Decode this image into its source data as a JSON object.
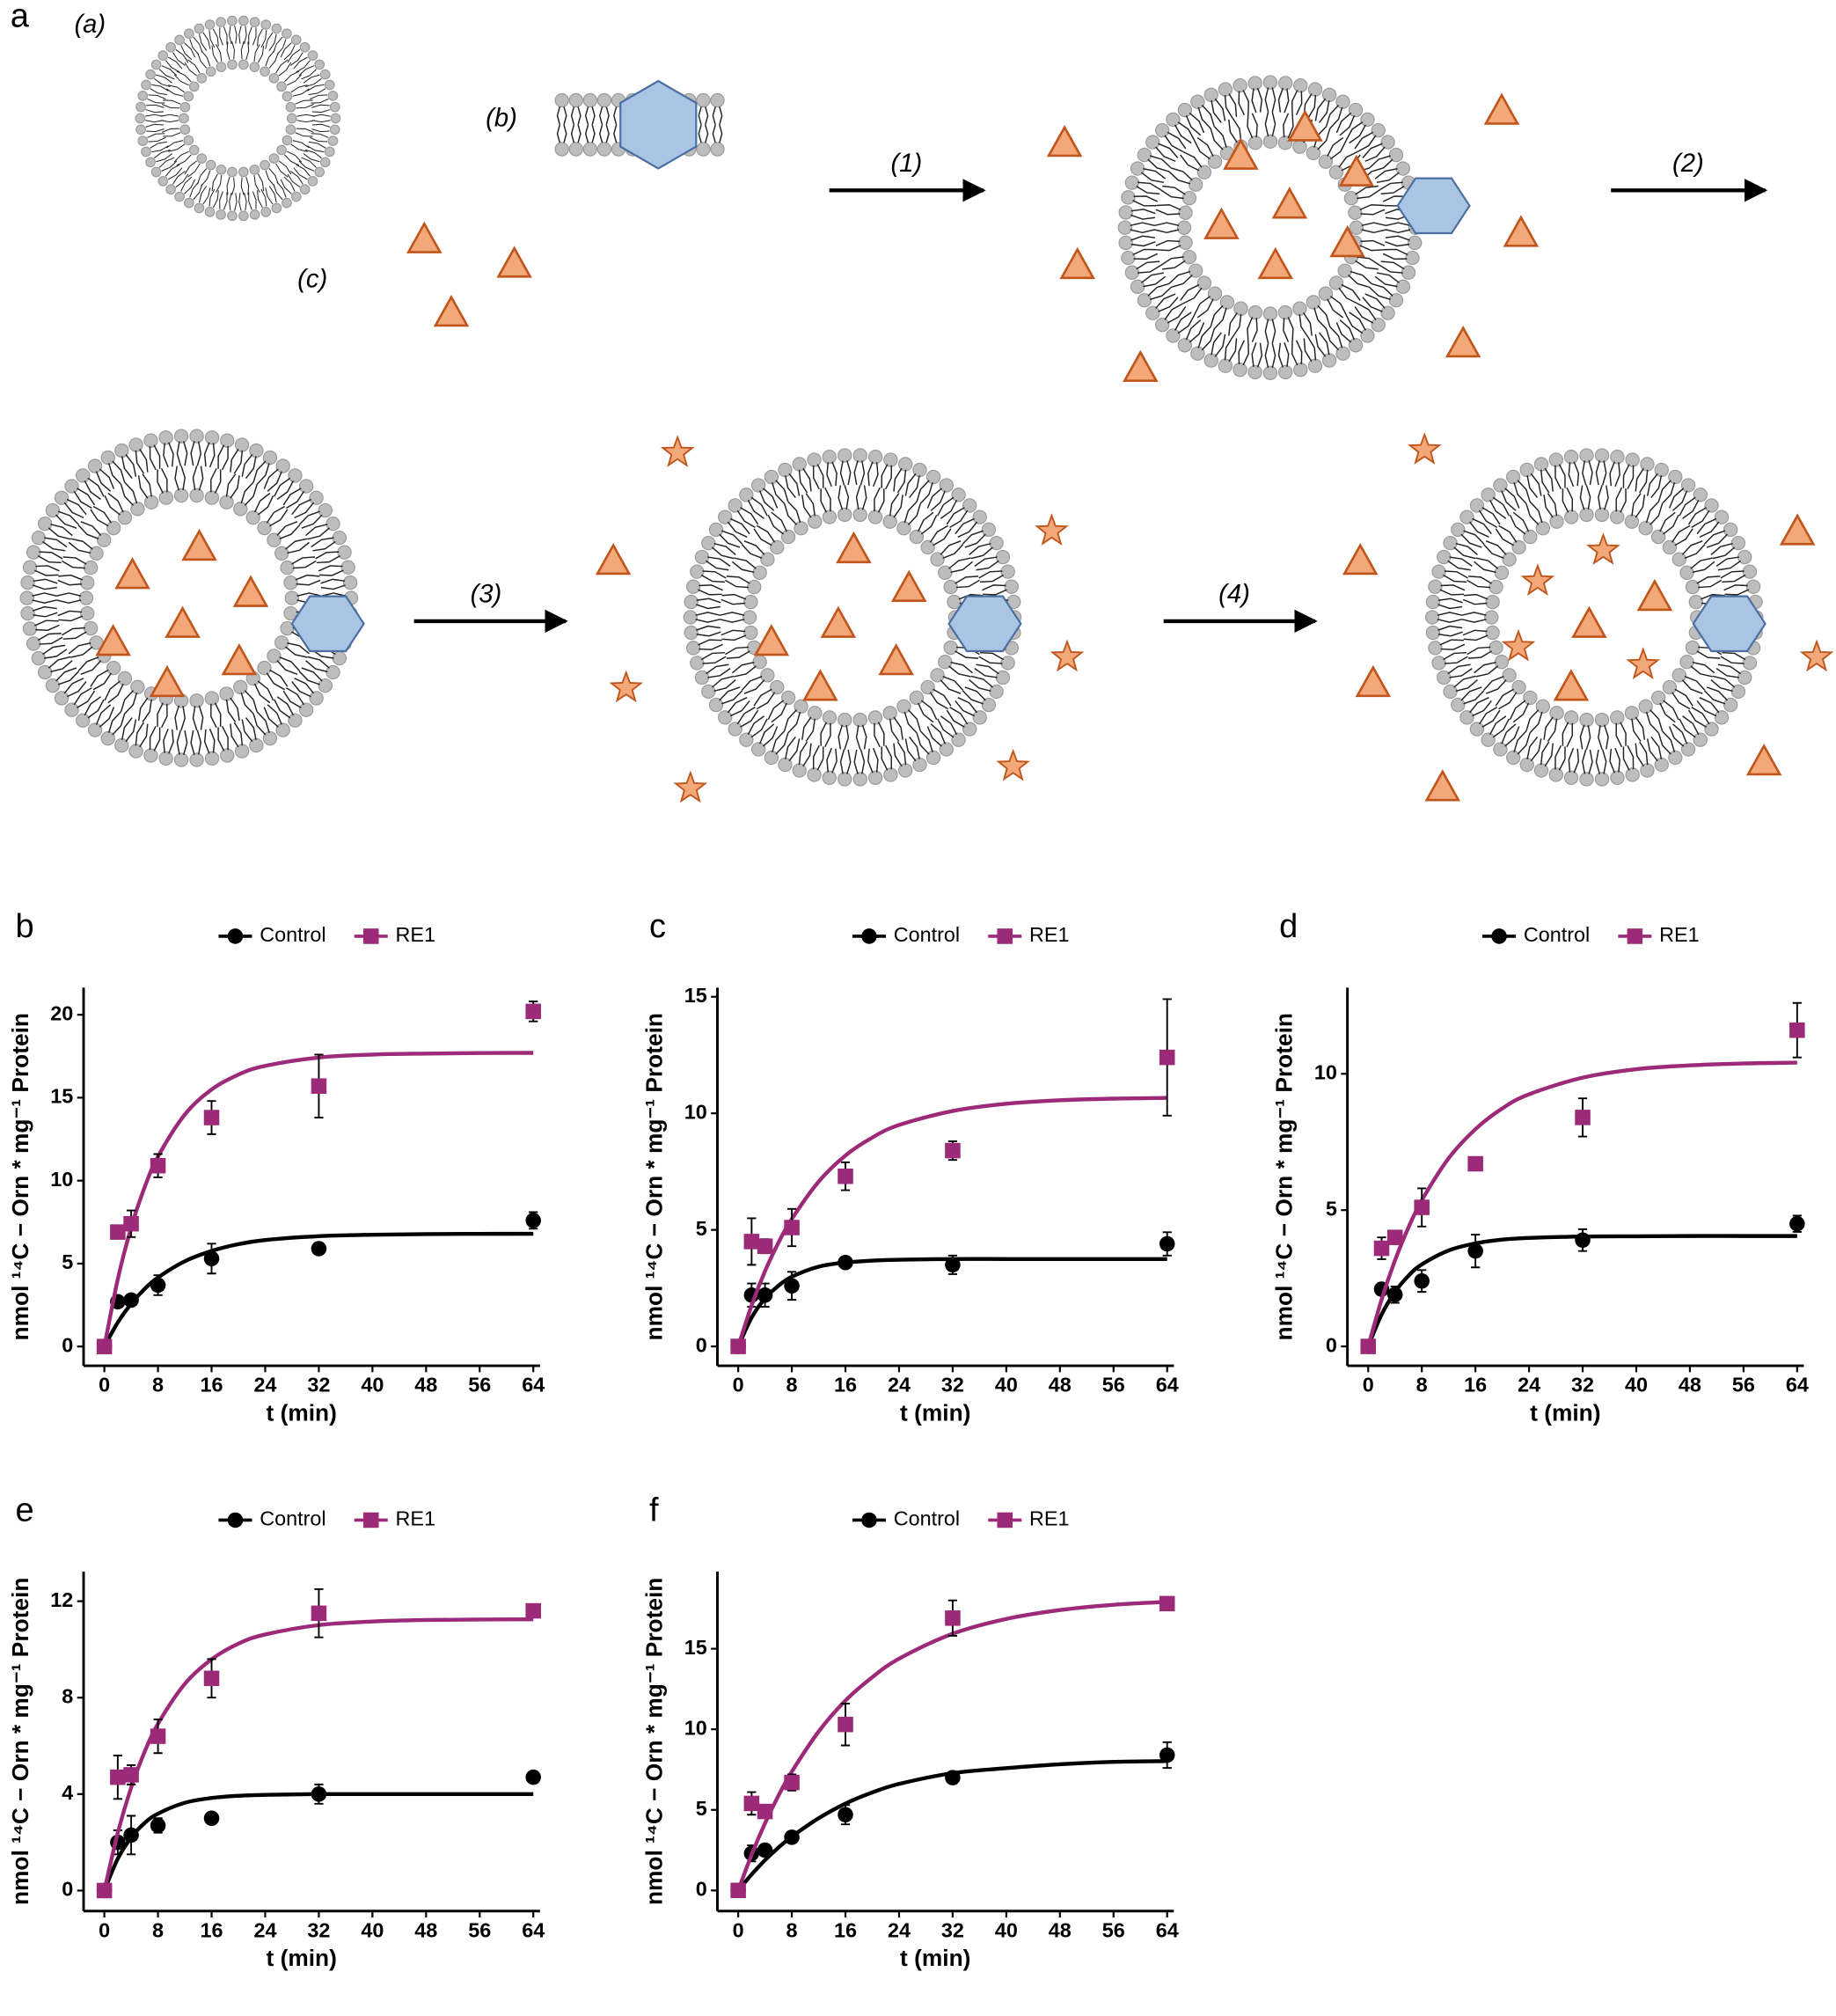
{
  "diagram": {
    "panel_label": "a",
    "labels": [
      "(a)",
      "(b)",
      "(c)"
    ],
    "steps": [
      "(1)",
      "(2)",
      "(3)",
      "(4)"
    ]
  },
  "chart_data": [
    {
      "type": "scatter",
      "panel_label": "b",
      "x_label": "t (min)",
      "y_label": "nmol ¹⁴C − Orn * mg⁻¹ Protein",
      "x": [
        0,
        2,
        4,
        8,
        16,
        32,
        64
      ],
      "fit_x": [
        0,
        2,
        4,
        6,
        8,
        12,
        16,
        20,
        24,
        32,
        40,
        48,
        56,
        64
      ],
      "xlim": [
        -3.1,
        65
      ],
      "ylim": [
        -1.16,
        21.63
      ],
      "xticks": [
        0,
        8,
        16,
        24,
        32,
        40,
        48,
        56,
        64
      ],
      "yticks": [
        0,
        5,
        10,
        15,
        20
      ],
      "series": [
        {
          "name": "Control",
          "color": "#000000",
          "marker": "circle",
          "values": [
            0,
            2.7,
            2.8,
            3.7,
            5.3,
            5.9,
            7.6
          ],
          "errors": [
            0,
            0.1,
            0.1,
            0.6,
            0.9,
            0.2,
            0.5
          ],
          "fit_values": [
            0,
            1.45,
            2.58,
            3.47,
            4.16,
            5.14,
            5.76,
            6.17,
            6.42,
            6.65,
            6.74,
            6.78,
            6.79,
            6.8
          ]
        },
        {
          "name": "RE1",
          "color": "#9c2a78",
          "marker": "square",
          "values": [
            0,
            6.9,
            7.4,
            10.9,
            13.8,
            15.7,
            20.2
          ],
          "errors": [
            0,
            0.2,
            0.8,
            0.7,
            1.0,
            1.9,
            0.6
          ],
          "fit_values": [
            0,
            4.05,
            7.17,
            9.59,
            11.45,
            13.98,
            15.49,
            16.39,
            16.92,
            17.42,
            17.6,
            17.66,
            17.69,
            17.7
          ]
        }
      ]
    },
    {
      "type": "scatter",
      "panel_label": "c",
      "x_label": "t (min)",
      "y_label": "nmol ¹⁴C − Orn * mg⁻¹ Protein",
      "x": [
        0,
        2,
        4,
        8,
        16,
        32,
        64
      ],
      "fit_x": [
        0,
        2,
        4,
        6,
        8,
        12,
        16,
        20,
        24,
        32,
        40,
        48,
        56,
        64
      ],
      "xlim": [
        -3.1,
        65
      ],
      "ylim": [
        -0.83,
        15.39
      ],
      "xticks": [
        0,
        8,
        16,
        24,
        32,
        40,
        48,
        56,
        64
      ],
      "yticks": [
        0,
        5,
        10,
        15
      ],
      "series": [
        {
          "name": "Control",
          "color": "#000000",
          "marker": "circle",
          "values": [
            0,
            2.2,
            2.2,
            2.6,
            3.6,
            3.5,
            4.4
          ],
          "errors": [
            0,
            0.5,
            0.5,
            0.6,
            0.1,
            0.4,
            0.5
          ],
          "fit_values": [
            0,
            1.24,
            2.06,
            2.6,
            2.99,
            3.42,
            3.6,
            3.68,
            3.72,
            3.75,
            3.75,
            3.75,
            3.75,
            3.75
          ]
        },
        {
          "name": "RE1",
          "color": "#9c2a78",
          "marker": "square",
          "values": [
            0,
            4.5,
            4.3,
            5.1,
            7.3,
            8.4,
            12.4
          ],
          "errors": [
            0,
            1.0,
            0.3,
            0.8,
            0.6,
            0.4,
            2.5
          ],
          "fit_values": [
            0,
            1.76,
            3.23,
            4.45,
            5.47,
            7.07,
            8.19,
            8.96,
            9.5,
            10.1,
            10.41,
            10.56,
            10.63,
            10.66
          ]
        }
      ]
    },
    {
      "type": "scatter",
      "panel_label": "d",
      "x_label": "t (min)",
      "y_label": "nmol ¹⁴C − Orn * mg⁻¹ Protein",
      "x": [
        0,
        2,
        4,
        8,
        16,
        32,
        64
      ],
      "fit_x": [
        0,
        2,
        4,
        6,
        8,
        12,
        16,
        20,
        24,
        32,
        40,
        48,
        56,
        64
      ],
      "xlim": [
        -3.1,
        65
      ],
      "ylim": [
        -0.71,
        13.16
      ],
      "xticks": [
        0,
        8,
        16,
        24,
        32,
        40,
        48,
        56,
        64
      ],
      "yticks": [
        0,
        5,
        10
      ],
      "series": [
        {
          "name": "Control",
          "color": "#000000",
          "marker": "circle",
          "values": [
            0,
            2.1,
            1.9,
            2.4,
            3.5,
            3.9,
            4.5
          ],
          "errors": [
            0,
            0.1,
            0.3,
            0.4,
            0.6,
            0.4,
            0.3
          ],
          "fit_values": [
            0,
            1.17,
            2.0,
            2.59,
            3.01,
            3.52,
            3.78,
            3.92,
            3.98,
            4.03,
            4.04,
            4.05,
            4.05,
            4.05
          ]
        },
        {
          "name": "RE1",
          "color": "#9c2a78",
          "marker": "square",
          "values": [
            0,
            3.6,
            4.0,
            5.1,
            6.7,
            8.4,
            11.6
          ],
          "errors": [
            0,
            0.4,
            0.2,
            0.7,
            0.2,
            0.7,
            1.0
          ],
          "fit_values": [
            0,
            1.72,
            3.16,
            4.36,
            5.36,
            6.9,
            7.97,
            8.73,
            9.25,
            9.86,
            10.17,
            10.31,
            10.38,
            10.41
          ]
        }
      ]
    },
    {
      "type": "scatter",
      "panel_label": "e",
      "x_label": "t (min)",
      "y_label": "nmol ¹⁴C − Orn * mg⁻¹ Protein",
      "x": [
        0,
        2,
        4,
        8,
        16,
        32,
        64
      ],
      "fit_x": [
        0,
        2,
        4,
        6,
        8,
        12,
        16,
        20,
        24,
        32,
        40,
        48,
        56,
        64
      ],
      "xlim": [
        -3.1,
        65
      ],
      "ylim": [
        -0.85,
        13.23
      ],
      "xticks": [
        0,
        8,
        16,
        24,
        32,
        40,
        48,
        56,
        64
      ],
      "yticks": [
        0,
        4,
        8,
        12
      ],
      "series": [
        {
          "name": "Control",
          "color": "#000000",
          "marker": "circle",
          "values": [
            0,
            2.0,
            2.3,
            2.7,
            3.0,
            4.0,
            4.7
          ],
          "errors": [
            0,
            0.5,
            0.8,
            0.3,
            0.2,
            0.4,
            0.2
          ],
          "fit_values": [
            0,
            1.32,
            2.2,
            2.8,
            3.19,
            3.64,
            3.84,
            3.93,
            3.97,
            4.0,
            4.0,
            4.0,
            4.0,
            4.0
          ]
        },
        {
          "name": "RE1",
          "color": "#9c2a78",
          "marker": "square",
          "values": [
            0,
            4.7,
            4.8,
            6.4,
            8.8,
            11.5,
            11.6
          ],
          "errors": [
            0,
            0.9,
            0.4,
            0.7,
            0.8,
            1.0,
            0.1
          ],
          "fit_values": [
            0,
            2.39,
            4.27,
            5.75,
            6.92,
            8.57,
            9.59,
            10.24,
            10.62,
            11.01,
            11.16,
            11.22,
            11.24,
            11.25
          ]
        }
      ]
    },
    {
      "type": "scatter",
      "panel_label": "f",
      "x_label": "t (min)",
      "y_label": "nmol ¹⁴C − Orn * mg⁻¹ Protein",
      "x": [
        0,
        2,
        4,
        8,
        16,
        32,
        64
      ],
      "fit_x": [
        0,
        2,
        4,
        6,
        8,
        12,
        16,
        20,
        24,
        32,
        40,
        48,
        56,
        64
      ],
      "xlim": [
        -3.1,
        65
      ],
      "ylim": [
        -1.28,
        19.79
      ],
      "xticks": [
        0,
        8,
        16,
        24,
        32,
        40,
        48,
        56,
        64
      ],
      "yticks": [
        0,
        5,
        10,
        15
      ],
      "series": [
        {
          "name": "Control",
          "color": "#000000",
          "marker": "circle",
          "values": [
            0,
            2.3,
            2.5,
            3.3,
            4.7,
            7.0,
            8.4
          ],
          "errors": [
            0,
            0.5,
            0.2,
            0.2,
            0.6,
            0.2,
            0.8
          ],
          "fit_values": [
            0,
            0.99,
            1.88,
            2.66,
            3.34,
            4.48,
            5.39,
            6.08,
            6.61,
            7.28,
            7.59,
            7.83,
            7.98,
            8.03
          ]
        },
        {
          "name": "RE1",
          "color": "#9c2a78",
          "marker": "square",
          "values": [
            0,
            5.4,
            4.9,
            6.7,
            10.3,
            16.9,
            17.8
          ],
          "errors": [
            0,
            0.7,
            0.4,
            0.5,
            1.3,
            1.1,
            0.4
          ],
          "fit_values": [
            0,
            2.22,
            4.17,
            5.88,
            7.37,
            9.86,
            11.78,
            13.23,
            14.38,
            15.93,
            16.85,
            17.4,
            17.73,
            17.91
          ]
        }
      ]
    }
  ]
}
